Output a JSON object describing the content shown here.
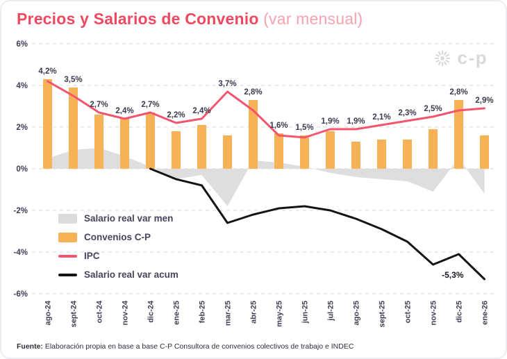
{
  "title": {
    "main": "Precios y Salarios de Convenio",
    "suffix": " (var mensual)"
  },
  "logo": {
    "text": "c-p"
  },
  "footer": {
    "prefix": "Fuente:",
    "text": " Elaboración propia en base a base C-P Consultora de convenios colectivos de trabajo e INDEC"
  },
  "chart_data": {
    "type": "combo",
    "title": "Precios y Salarios de Convenio (var mensual)",
    "categories": [
      "ago-24",
      "sept-24",
      "oct-24",
      "nov-24",
      "dic-24",
      "ene-25",
      "feb-25",
      "mar-25",
      "abr-25",
      "may-25",
      "jun-25",
      "jul-25",
      "ago-25",
      "sept-25",
      "oct-25",
      "nov-25",
      "dic-25",
      "ene-26"
    ],
    "ylim": [
      -6,
      6
    ],
    "yticks": [
      {
        "label": "6%",
        "value": 6
      },
      {
        "label": "4%",
        "value": 4
      },
      {
        "label": "2%",
        "value": 2
      },
      {
        "label": "0%",
        "value": 0
      },
      {
        "label": "-2%",
        "value": -2
      },
      {
        "label": "-4%",
        "value": -4
      },
      {
        "label": "-6%",
        "value": -6
      }
    ],
    "grid": "dashed-horizontal",
    "legend_position": "left-middle-inside",
    "series": [
      {
        "name": "Salario real var men",
        "type": "area",
        "color": "#dcdcdc",
        "values": [
          0.5,
          0.9,
          1.0,
          0.6,
          0.1,
          -0.5,
          -0.3,
          -1.8,
          0.4,
          0.3,
          0.1,
          -0.2,
          -0.4,
          -0.5,
          -0.6,
          -1.1,
          0.5,
          -1.2
        ]
      },
      {
        "name": "Convenios C-P",
        "type": "bar",
        "color": "#f7b157",
        "values": [
          4.3,
          3.9,
          2.6,
          2.4,
          2.7,
          1.8,
          2.1,
          1.6,
          3.3,
          1.7,
          1.6,
          1.8,
          1.3,
          1.4,
          1.4,
          1.9,
          3.3,
          1.6
        ]
      },
      {
        "name": "IPC",
        "type": "line",
        "color": "#f4546e",
        "values": [
          4.2,
          3.5,
          2.7,
          2.4,
          2.7,
          2.2,
          2.4,
          3.7,
          2.8,
          1.6,
          1.5,
          1.9,
          1.9,
          2.1,
          2.3,
          2.5,
          2.8,
          2.9
        ],
        "point_labels": [
          "4,2%",
          "3,5%",
          "2,7%",
          "2,4%",
          "2,7%",
          "2,2%",
          "2,4%",
          "3,7%",
          "2,8%",
          "1,6%",
          "1,5%",
          "1,9%",
          "1,9%",
          "2,1%",
          "2,3%",
          "2,5%",
          "2,8%",
          "2,9%"
        ]
      },
      {
        "name": "Salario real var acum",
        "type": "line",
        "color": "#141414",
        "values": [
          null,
          null,
          null,
          null,
          0,
          -0.5,
          -0.8,
          -2.6,
          -2.2,
          -1.9,
          -1.8,
          -2.0,
          -2.4,
          -2.9,
          -3.5,
          -4.6,
          -4.1,
          -5.3
        ],
        "end_label": "-5,3%"
      }
    ]
  }
}
